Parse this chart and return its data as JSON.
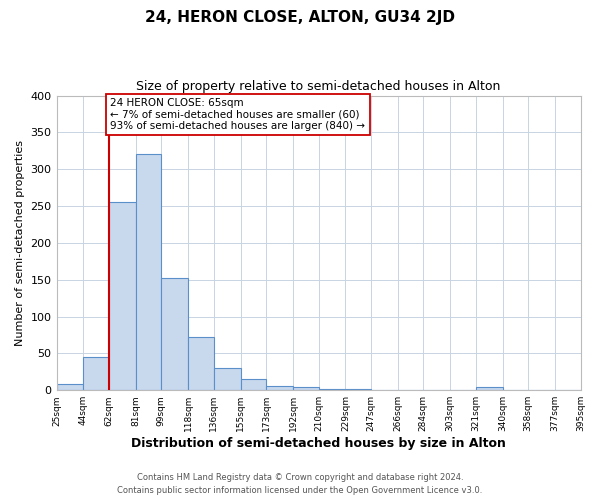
{
  "title": "24, HERON CLOSE, ALTON, GU34 2JD",
  "subtitle": "Size of property relative to semi-detached houses in Alton",
  "xlabel": "Distribution of semi-detached houses by size in Alton",
  "ylabel": "Number of semi-detached properties",
  "bar_edges": [
    25,
    44,
    62,
    81,
    99,
    118,
    136,
    155,
    173,
    192,
    210,
    229,
    247,
    266,
    284,
    303,
    321,
    340,
    358,
    377,
    395
  ],
  "bar_heights": [
    8,
    45,
    255,
    320,
    153,
    72,
    30,
    15,
    6,
    5,
    1,
    1,
    0,
    0,
    0,
    0,
    5,
    0,
    0,
    0
  ],
  "bar_color": "#c9d9ed",
  "bar_edge_color": "#5b8fc9",
  "ylim": [
    0,
    400
  ],
  "yticks": [
    0,
    50,
    100,
    150,
    200,
    250,
    300,
    350,
    400
  ],
  "xtick_labels": [
    "25sqm",
    "44sqm",
    "62sqm",
    "81sqm",
    "99sqm",
    "118sqm",
    "136sqm",
    "155sqm",
    "173sqm",
    "192sqm",
    "210sqm",
    "229sqm",
    "247sqm",
    "266sqm",
    "284sqm",
    "303sqm",
    "321sqm",
    "340sqm",
    "358sqm",
    "377sqm",
    "395sqm"
  ],
  "property_line_x": 62,
  "property_line_color": "#cc0000",
  "annotation_title": "24 HERON CLOSE: 65sqm",
  "annotation_line1": "← 7% of semi-detached houses are smaller (60)",
  "annotation_line2": "93% of semi-detached houses are larger (840) →",
  "annotation_box_color": "#ffffff",
  "annotation_box_edgecolor": "#cc0000",
  "footer_line1": "Contains HM Land Registry data © Crown copyright and database right 2024.",
  "footer_line2": "Contains public sector information licensed under the Open Government Licence v3.0.",
  "background_color": "#ffffff",
  "grid_color": "#c8d4e3"
}
